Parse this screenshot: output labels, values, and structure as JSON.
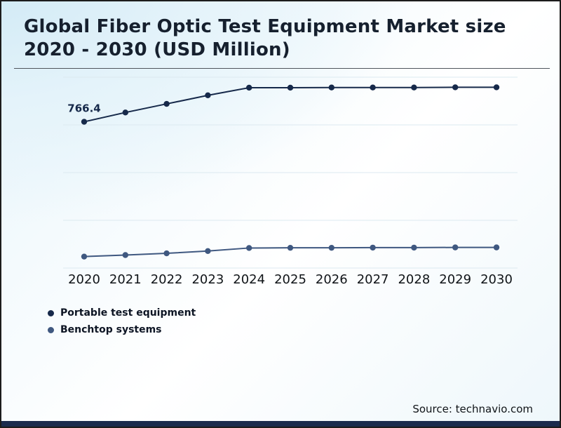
{
  "page": {
    "title": "Global Fiber Optic Test Equipment Market size 2020 - 2030 (USD Million)",
    "source": "Source: technavio.com"
  },
  "chart_data": {
    "type": "line",
    "title": "Global Fiber Optic Test Equipment Market size 2020 - 2030 (USD Million)",
    "categories": [
      "2020",
      "2021",
      "2022",
      "2023",
      "2024",
      "2025",
      "2026",
      "2027",
      "2028",
      "2029",
      "2030"
    ],
    "series": [
      {
        "name": "Portable test equipment",
        "color": "#16294a",
        "values": [
          766.4,
          815,
          860,
          905,
          945,
          945,
          946,
          946,
          946,
          947,
          947
        ]
      },
      {
        "name": "Benchtop systems",
        "color": "#3f5880",
        "values": [
          60,
          68,
          77,
          89,
          105,
          106,
          106,
          107,
          107,
          108,
          108
        ]
      }
    ],
    "xlabel": "",
    "ylabel": "",
    "ylim": [
      0,
      1000
    ],
    "grid": true,
    "grid_step": 250,
    "legend_position": "bottom-left",
    "annotations": [
      {
        "series": 0,
        "index": 0,
        "text": "766.4"
      }
    ]
  }
}
